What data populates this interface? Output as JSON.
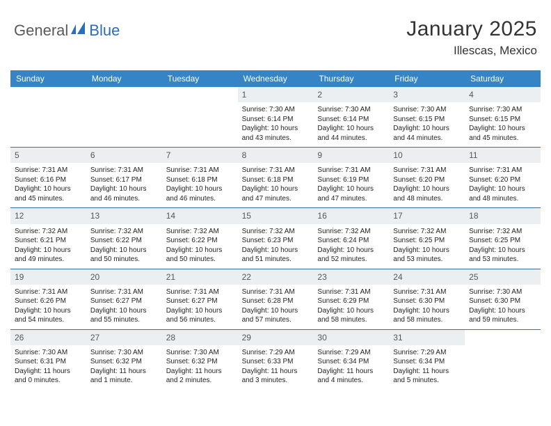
{
  "brand": {
    "part1": "General",
    "part2": "Blue"
  },
  "title": {
    "month": "January 2025",
    "location": "Illescas, Mexico"
  },
  "colors": {
    "header_bg": "#3585c6",
    "rule": "#3e6c9a",
    "daynum_bg": "#eceff1",
    "brand_blue": "#2a6db8",
    "brand_gray": "#5a5a5a"
  },
  "dow": [
    "Sunday",
    "Monday",
    "Tuesday",
    "Wednesday",
    "Thursday",
    "Friday",
    "Saturday"
  ],
  "first_weekday_index": 3,
  "days": [
    {
      "n": 1,
      "sunrise": "7:30 AM",
      "sunset": "6:14 PM",
      "daylight": "10 hours and 43 minutes."
    },
    {
      "n": 2,
      "sunrise": "7:30 AM",
      "sunset": "6:14 PM",
      "daylight": "10 hours and 44 minutes."
    },
    {
      "n": 3,
      "sunrise": "7:30 AM",
      "sunset": "6:15 PM",
      "daylight": "10 hours and 44 minutes."
    },
    {
      "n": 4,
      "sunrise": "7:30 AM",
      "sunset": "6:15 PM",
      "daylight": "10 hours and 45 minutes."
    },
    {
      "n": 5,
      "sunrise": "7:31 AM",
      "sunset": "6:16 PM",
      "daylight": "10 hours and 45 minutes."
    },
    {
      "n": 6,
      "sunrise": "7:31 AM",
      "sunset": "6:17 PM",
      "daylight": "10 hours and 46 minutes."
    },
    {
      "n": 7,
      "sunrise": "7:31 AM",
      "sunset": "6:18 PM",
      "daylight": "10 hours and 46 minutes."
    },
    {
      "n": 8,
      "sunrise": "7:31 AM",
      "sunset": "6:18 PM",
      "daylight": "10 hours and 47 minutes."
    },
    {
      "n": 9,
      "sunrise": "7:31 AM",
      "sunset": "6:19 PM",
      "daylight": "10 hours and 47 minutes."
    },
    {
      "n": 10,
      "sunrise": "7:31 AM",
      "sunset": "6:20 PM",
      "daylight": "10 hours and 48 minutes."
    },
    {
      "n": 11,
      "sunrise": "7:31 AM",
      "sunset": "6:20 PM",
      "daylight": "10 hours and 48 minutes."
    },
    {
      "n": 12,
      "sunrise": "7:32 AM",
      "sunset": "6:21 PM",
      "daylight": "10 hours and 49 minutes."
    },
    {
      "n": 13,
      "sunrise": "7:32 AM",
      "sunset": "6:22 PM",
      "daylight": "10 hours and 50 minutes."
    },
    {
      "n": 14,
      "sunrise": "7:32 AM",
      "sunset": "6:22 PM",
      "daylight": "10 hours and 50 minutes."
    },
    {
      "n": 15,
      "sunrise": "7:32 AM",
      "sunset": "6:23 PM",
      "daylight": "10 hours and 51 minutes."
    },
    {
      "n": 16,
      "sunrise": "7:32 AM",
      "sunset": "6:24 PM",
      "daylight": "10 hours and 52 minutes."
    },
    {
      "n": 17,
      "sunrise": "7:32 AM",
      "sunset": "6:25 PM",
      "daylight": "10 hours and 53 minutes."
    },
    {
      "n": 18,
      "sunrise": "7:32 AM",
      "sunset": "6:25 PM",
      "daylight": "10 hours and 53 minutes."
    },
    {
      "n": 19,
      "sunrise": "7:31 AM",
      "sunset": "6:26 PM",
      "daylight": "10 hours and 54 minutes."
    },
    {
      "n": 20,
      "sunrise": "7:31 AM",
      "sunset": "6:27 PM",
      "daylight": "10 hours and 55 minutes."
    },
    {
      "n": 21,
      "sunrise": "7:31 AM",
      "sunset": "6:27 PM",
      "daylight": "10 hours and 56 minutes."
    },
    {
      "n": 22,
      "sunrise": "7:31 AM",
      "sunset": "6:28 PM",
      "daylight": "10 hours and 57 minutes."
    },
    {
      "n": 23,
      "sunrise": "7:31 AM",
      "sunset": "6:29 PM",
      "daylight": "10 hours and 58 minutes."
    },
    {
      "n": 24,
      "sunrise": "7:31 AM",
      "sunset": "6:30 PM",
      "daylight": "10 hours and 58 minutes."
    },
    {
      "n": 25,
      "sunrise": "7:30 AM",
      "sunset": "6:30 PM",
      "daylight": "10 hours and 59 minutes."
    },
    {
      "n": 26,
      "sunrise": "7:30 AM",
      "sunset": "6:31 PM",
      "daylight": "11 hours and 0 minutes."
    },
    {
      "n": 27,
      "sunrise": "7:30 AM",
      "sunset": "6:32 PM",
      "daylight": "11 hours and 1 minute."
    },
    {
      "n": 28,
      "sunrise": "7:30 AM",
      "sunset": "6:32 PM",
      "daylight": "11 hours and 2 minutes."
    },
    {
      "n": 29,
      "sunrise": "7:29 AM",
      "sunset": "6:33 PM",
      "daylight": "11 hours and 3 minutes."
    },
    {
      "n": 30,
      "sunrise": "7:29 AM",
      "sunset": "6:34 PM",
      "daylight": "11 hours and 4 minutes."
    },
    {
      "n": 31,
      "sunrise": "7:29 AM",
      "sunset": "6:34 PM",
      "daylight": "11 hours and 5 minutes."
    }
  ],
  "labels": {
    "sunrise": "Sunrise: ",
    "sunset": "Sunset: ",
    "daylight": "Daylight: "
  }
}
